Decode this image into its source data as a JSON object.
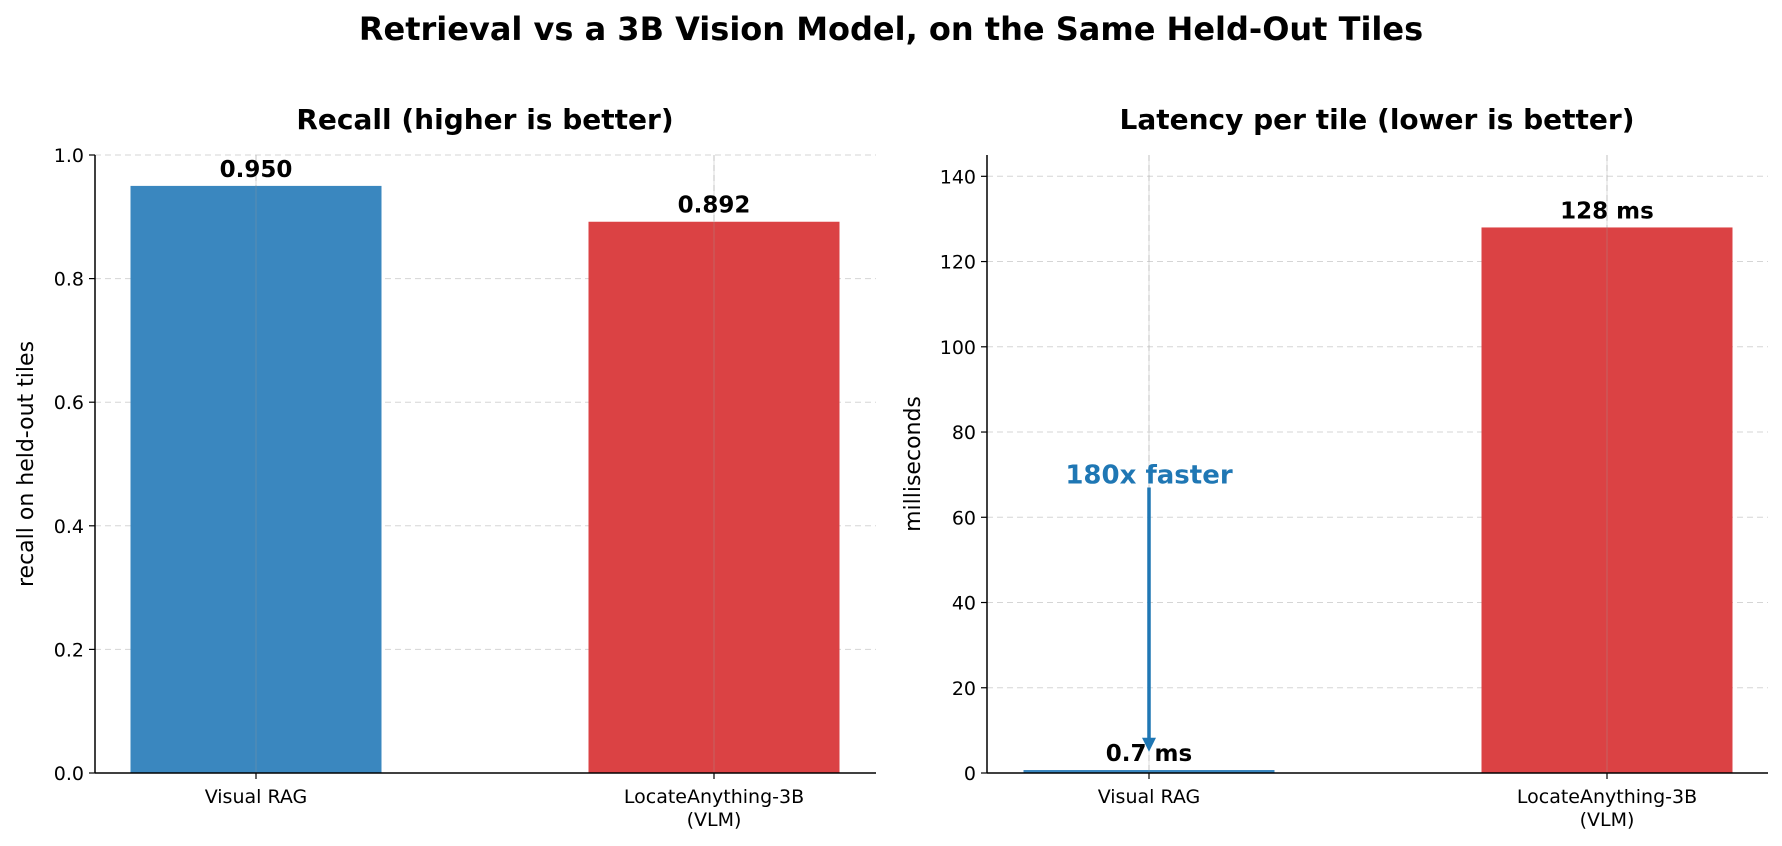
{
  "suptitle": "Retrieval vs a 3B Vision Model, on the Same Held-Out Tiles",
  "colors": {
    "rag": "#3a87bf",
    "vlm": "#db4244",
    "annotation": "#1f77b4",
    "grid": "#d5d5d5"
  },
  "chart_data": [
    {
      "type": "bar",
      "title": "Recall  (higher is better)",
      "ylabel": "recall on held-out tiles",
      "categories": [
        [
          "Visual RAG"
        ],
        [
          "LocateAnything-3B",
          "(VLM)"
        ]
      ],
      "values": [
        0.95,
        0.892
      ],
      "value_labels": [
        "0.950",
        "0.892"
      ],
      "ylim": [
        0,
        1.0
      ],
      "yticks": [
        0.0,
        0.2,
        0.4,
        0.6,
        0.8,
        1.0
      ],
      "ytick_labels": [
        "0.0",
        "0.2",
        "0.4",
        "0.6",
        "0.8",
        "1.0"
      ],
      "grid": true
    },
    {
      "type": "bar",
      "title": "Latency per tile  (lower is better)",
      "ylabel": "milliseconds",
      "categories": [
        [
          "Visual RAG"
        ],
        [
          "LocateAnything-3B",
          "(VLM)"
        ]
      ],
      "values": [
        0.7,
        128
      ],
      "value_labels": [
        "0.7 ms",
        "128 ms"
      ],
      "ylim": [
        0,
        145
      ],
      "yticks": [
        0,
        20,
        40,
        60,
        80,
        100,
        120,
        140
      ],
      "ytick_labels": [
        "0",
        "20",
        "40",
        "60",
        "80",
        "100",
        "120",
        "140"
      ],
      "grid": true,
      "annotation": {
        "text": "180x faster",
        "x_category": 0,
        "text_y": 70,
        "arrow_from_y": 67,
        "arrow_to_y": 5
      }
    }
  ]
}
